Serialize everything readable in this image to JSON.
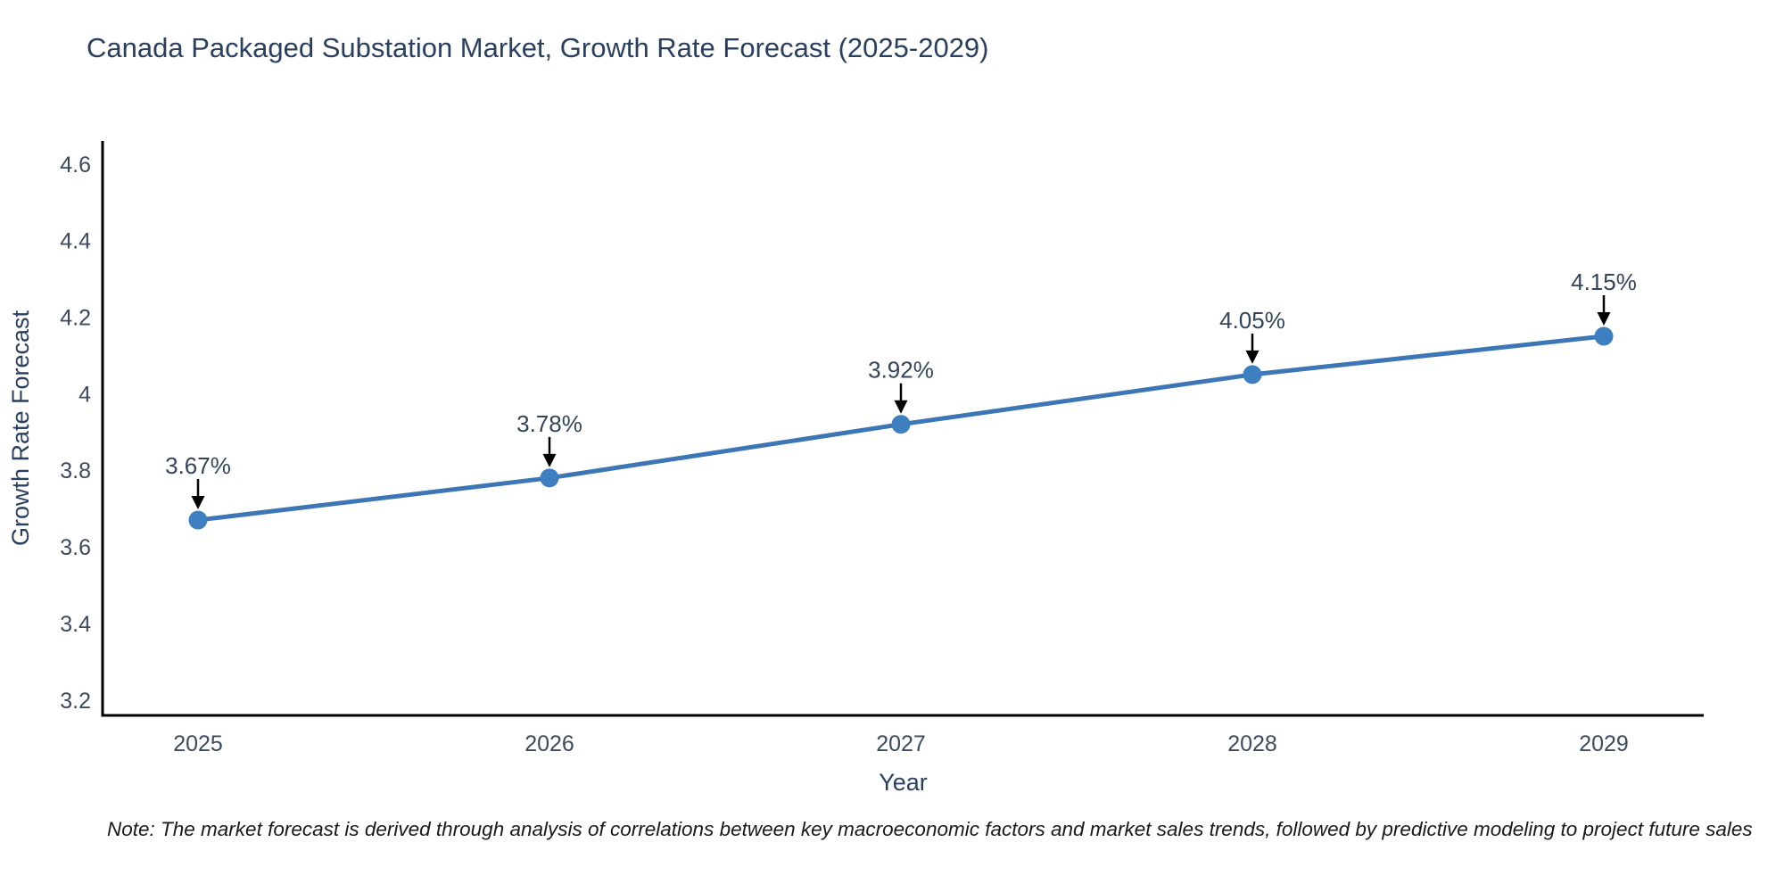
{
  "title": "Canada Packaged Substation Market, Growth Rate Forecast (2025-2029)",
  "note": "Note: The market forecast is derived through analysis of correlations between key macroeconomic factors and market sales trends, followed by predictive modeling to project future sales",
  "chart_data": {
    "type": "line",
    "x": [
      "2025",
      "2026",
      "2027",
      "2028",
      "2029"
    ],
    "values": [
      3.67,
      3.78,
      3.92,
      4.05,
      4.15
    ],
    "point_labels": [
      "3.67%",
      "3.78%",
      "3.92%",
      "4.05%",
      "4.15%"
    ],
    "xlabel": "Year",
    "ylabel": "Growth Rate Forecast",
    "ylim": [
      3.16,
      4.66
    ],
    "yticks": [
      3.2,
      3.4,
      3.6,
      3.8,
      4,
      4.2,
      4.4,
      4.6
    ],
    "grid": false,
    "legend": false,
    "line_color": "#3d76b4",
    "marker_color": "#3e7fc1",
    "arrow_color": "#000000",
    "spine_color": "#000000",
    "tick_color": "#3c4a60",
    "axis_title_color": "#2a3f5f",
    "annotation_color": "#33445c"
  }
}
